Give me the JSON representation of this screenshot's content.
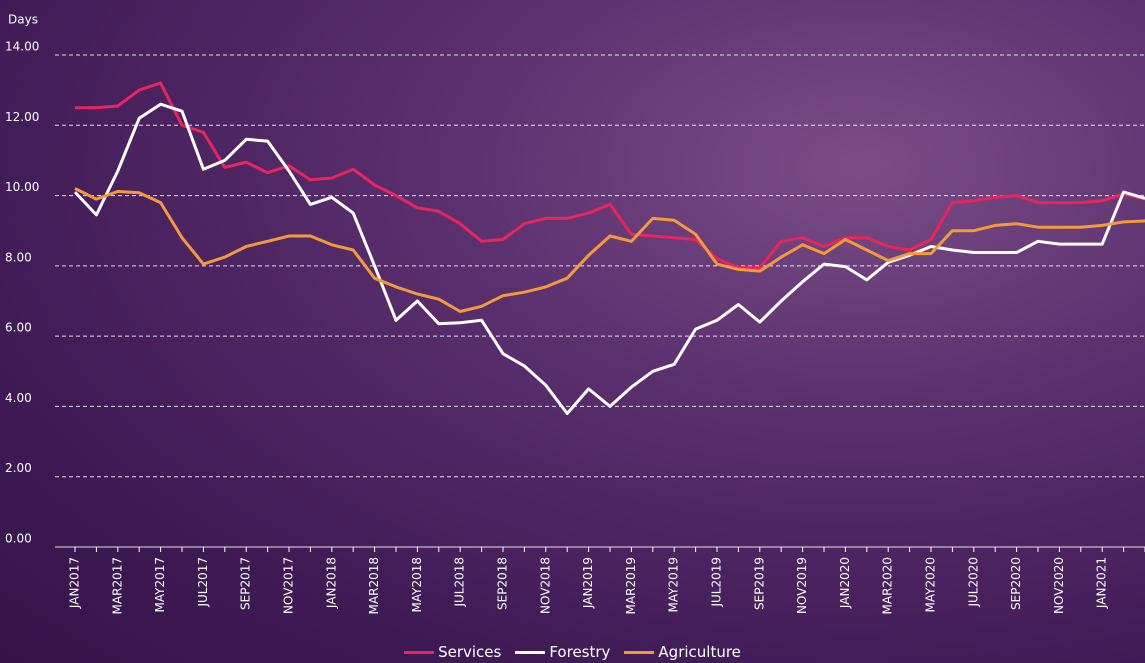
{
  "chart_data": {
    "type": "line",
    "y_label": "Days",
    "categories": [
      "JAN2017",
      null,
      "MAR2017",
      null,
      "MAY2017",
      null,
      "JUL2017",
      null,
      "SEP2017",
      null,
      "NOV2017",
      null,
      "JAN2018",
      null,
      "MAR2018",
      null,
      "MAY2018",
      null,
      "JUL2018",
      null,
      "SEP2018",
      null,
      "NOV2018",
      null,
      "JAN2019",
      null,
      "MAR2019",
      null,
      "MAY2019",
      null,
      "JUL2019",
      null,
      "SEP2019",
      null,
      "NOV2019",
      null,
      "JAN2020",
      null,
      "MAR2020",
      null,
      "MAY2020",
      null,
      "JUL2020",
      null,
      "SEP2020",
      null,
      "NOV2020",
      null,
      "JAN2021",
      null,
      null
    ],
    "series": [
      {
        "name": "Services",
        "color": "#e8265e",
        "values": [
          12.5,
          12.5,
          12.55,
          13.0,
          13.2,
          12.0,
          11.8,
          10.8,
          10.95,
          10.65,
          10.85,
          10.45,
          10.5,
          10.75,
          10.3,
          10.0,
          9.65,
          9.55,
          9.2,
          8.7,
          8.75,
          9.2,
          9.35,
          9.35,
          9.5,
          9.75,
          8.9,
          8.85,
          8.8,
          8.75,
          8.2,
          7.95,
          7.95,
          8.7,
          8.8,
          8.55,
          8.8,
          8.8,
          8.55,
          8.45,
          8.75,
          9.8,
          9.85,
          9.95,
          10.0,
          9.8,
          9.8,
          9.8,
          9.85,
          10.05,
          9.9
        ]
      },
      {
        "name": "Forestry",
        "color": "#ffffff",
        "values": [
          10.1,
          9.45,
          10.7,
          12.2,
          12.6,
          12.4,
          10.75,
          11.0,
          11.6,
          11.55,
          10.7,
          9.75,
          9.95,
          9.5,
          8.0,
          6.45,
          7.0,
          6.35,
          6.38,
          6.45,
          5.5,
          5.15,
          4.6,
          3.8,
          4.5,
          4.0,
          4.55,
          5.0,
          5.2,
          6.2,
          6.45,
          6.9,
          6.4,
          7.0,
          7.55,
          8.05,
          7.98,
          7.6,
          8.1,
          8.3,
          8.55,
          8.45,
          8.38,
          8.38,
          8.38,
          8.7,
          8.62,
          8.62,
          8.62,
          10.1,
          9.92
        ]
      },
      {
        "name": "Agriculture",
        "color": "#f59a3c",
        "values": [
          10.2,
          9.9,
          10.12,
          10.08,
          9.8,
          8.8,
          8.05,
          8.25,
          8.55,
          8.7,
          8.85,
          8.85,
          8.6,
          8.45,
          7.65,
          7.4,
          7.2,
          7.05,
          6.7,
          6.85,
          7.15,
          7.25,
          7.4,
          7.65,
          8.3,
          8.85,
          8.7,
          9.35,
          9.3,
          8.9,
          8.05,
          7.9,
          7.85,
          8.25,
          8.6,
          8.35,
          8.75,
          8.45,
          8.15,
          8.35,
          8.35,
          9.0,
          9.0,
          9.15,
          9.2,
          9.1,
          9.1,
          9.1,
          9.15,
          9.25,
          9.28
        ]
      }
    ],
    "ylim": [
      0,
      14
    ],
    "yticks": [
      {
        "value": 0,
        "label": "0.00"
      },
      {
        "value": 2,
        "label": "2.00"
      },
      {
        "value": 4,
        "label": "4.00"
      },
      {
        "value": 6,
        "label": "6.00"
      },
      {
        "value": 8,
        "label": "8.00"
      },
      {
        "value": 10,
        "label": "10.00"
      },
      {
        "value": 12,
        "label": "12.00"
      },
      {
        "value": 14,
        "label": "14.00"
      }
    ],
    "grid": true
  }
}
